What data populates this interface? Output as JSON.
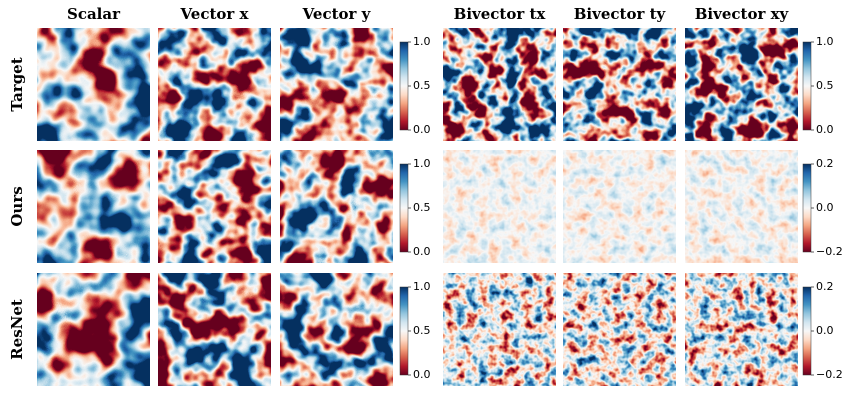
{
  "columns": [
    "Scalar",
    "Vector x",
    "Vector y",
    "Bivector tx",
    "Bivector ty",
    "Bivector xy"
  ],
  "rows": [
    "Target",
    "Ours",
    "ResNet"
  ],
  "colorbars": [
    {
      "left": {
        "lim": [
          0,
          1
        ],
        "ticks": [
          {
            "value": 0,
            "label": "0.0"
          },
          0.5,
          {
            "value": 1,
            "label": "1.0"
          }
        ]
      },
      "right": {
        "lim": [
          0,
          1
        ],
        "ticks": [
          {
            "value": 0,
            "label": "0.0"
          },
          0.5,
          {
            "value": 1,
            "label": "1.0"
          }
        ]
      }
    },
    {
      "left": {
        "lim": [
          0,
          1
        ],
        "ticks": [
          {
            "value": 0,
            "label": "0.0"
          },
          0.5,
          {
            "value": 1,
            "label": "1.0"
          }
        ]
      },
      "right": {
        "lim": [
          -0.2,
          0.2
        ],
        "ticks": [
          {
            "value": -0.2,
            "label": "−0.2"
          },
          {
            "value": 0,
            "label": "0.0"
          },
          0.2
        ]
      }
    },
    {
      "left": {
        "lim": [
          0,
          1
        ],
        "ticks": [
          {
            "value": 0,
            "label": "0.0"
          },
          0.5,
          {
            "value": 1,
            "label": "1.0"
          }
        ]
      },
      "right": {
        "lim": [
          -0.2,
          0.2
        ],
        "ticks": [
          {
            "value": -0.2,
            "label": "−0.2"
          },
          {
            "value": 0,
            "label": "0.0"
          },
          0.2
        ]
      }
    }
  ]
}
